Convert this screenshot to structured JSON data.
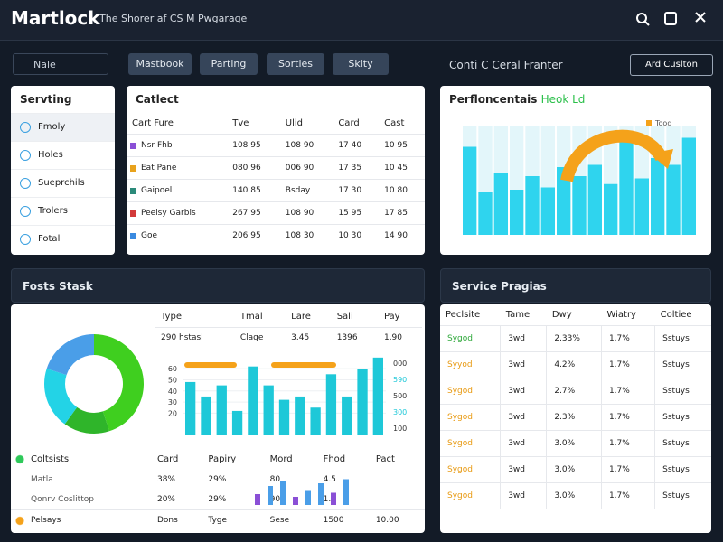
{
  "header": {
    "title": "Martlock",
    "subtitle": "The Shorer af CS M Pwgarage"
  },
  "toolbar": {
    "search": "Nale",
    "tabs": [
      "Mastbook",
      "Parting",
      "Sorties",
      "Skity"
    ],
    "caption": "Conti C Ceral Franter",
    "button": "Ard Cuslton"
  },
  "sidebar": {
    "title": "Servting",
    "items": [
      "Fmoly",
      "Holes",
      "Sueprchils",
      "Trolers",
      "Fotal"
    ]
  },
  "contacts": {
    "title": "Catlect",
    "columns": [
      "Cart Fure",
      "Tve",
      "Ulid",
      "Card",
      "Cast"
    ],
    "rows": [
      [
        "Nsr Fhb",
        "108 95",
        "108 90",
        "17 40",
        "10 95"
      ],
      [
        "Eat Pane",
        "080 96",
        "006 90",
        "17 35",
        "10 45"
      ],
      [
        "Gaipoel",
        "140 85",
        "Bsday",
        "17 30",
        "10 80"
      ],
      [
        "Peelsy Garbis",
        "267 95",
        "108 90",
        "15 95",
        "17 85"
      ],
      [
        "Goe",
        "206 95",
        "108 30",
        "10 30",
        "14 90"
      ]
    ]
  },
  "performance": {
    "title": "Perfloncentais",
    "tag": "Heok Ld",
    "legend": "Tood",
    "chart": {
      "type": "bar",
      "values": [
        78,
        38,
        55,
        40,
        52,
        42,
        60,
        52,
        62,
        45,
        90,
        50,
        68,
        62,
        86
      ],
      "ylim": [
        0,
        100
      ],
      "color": "#2fd4ee"
    }
  },
  "posts": {
    "title": "Fosts Stask",
    "donut": {
      "type": "pie",
      "values": [
        45,
        15,
        20,
        20
      ],
      "colors": [
        "#3fcf1f",
        "#2fb52a",
        "#23d3e6",
        "#4a9ee8"
      ]
    },
    "table": {
      "columns": [
        "Type",
        "Tmal",
        "Lare",
        "Sali",
        "Pay"
      ],
      "rows": [
        [
          "290 hstasl",
          "Clage",
          "3.45",
          "1396",
          "1.90"
        ]
      ]
    },
    "chart": {
      "type": "bar",
      "values": [
        48,
        35,
        45,
        22,
        62,
        45,
        32,
        35,
        25,
        55,
        35,
        60,
        70
      ],
      "ylim": [
        0,
        65
      ],
      "yticks": [
        60,
        50,
        40,
        30,
        20
      ],
      "right_labels": [
        "000",
        "590",
        "500",
        "300",
        "100"
      ],
      "color": "#1ec8d8"
    },
    "list": {
      "columns": [
        "Coltsists",
        "Card",
        "Papiry",
        "Mord",
        "Fhod",
        "Pact"
      ],
      "rows": [
        {
          "name": "Matla",
          "cells": [
            "38%",
            "29%",
            "80",
            "4.5"
          ]
        },
        {
          "name": "Qonrv Coslittop",
          "cells": [
            "20%",
            "29%",
            "90",
            "1.5"
          ]
        }
      ],
      "spark": [
        40,
        70,
        90,
        30,
        55,
        80,
        45,
        95
      ],
      "footer": {
        "name": "Pelsays",
        "cells": [
          "Dons",
          "Tyge",
          "Sese",
          "1500",
          "10.00"
        ]
      }
    }
  },
  "services": {
    "title": "Service Pragias",
    "columns": [
      "Peclsite",
      "Tame",
      "Dwy",
      "Wiatry",
      "Coltiee"
    ],
    "rows": [
      [
        "Sygod",
        "3wd",
        "2.33%",
        "1.7%",
        "Sstuys"
      ],
      [
        "Syyod",
        "3wd",
        "4.2%",
        "1.7%",
        "Sstuys"
      ],
      [
        "Sygod",
        "3wd",
        "2.7%",
        "1.7%",
        "Sstuys"
      ],
      [
        "Sygod",
        "3wd",
        "2.3%",
        "1.7%",
        "Sstuys"
      ],
      [
        "Sygod",
        "3wd",
        "3.0%",
        "1.7%",
        "Sstuys"
      ],
      [
        "Sygod",
        "3wd",
        "3.0%",
        "1.7%",
        "Sstuys"
      ],
      [
        "Sygod",
        "3wd",
        "3.0%",
        "1.7%",
        "Sstuys"
      ]
    ]
  }
}
